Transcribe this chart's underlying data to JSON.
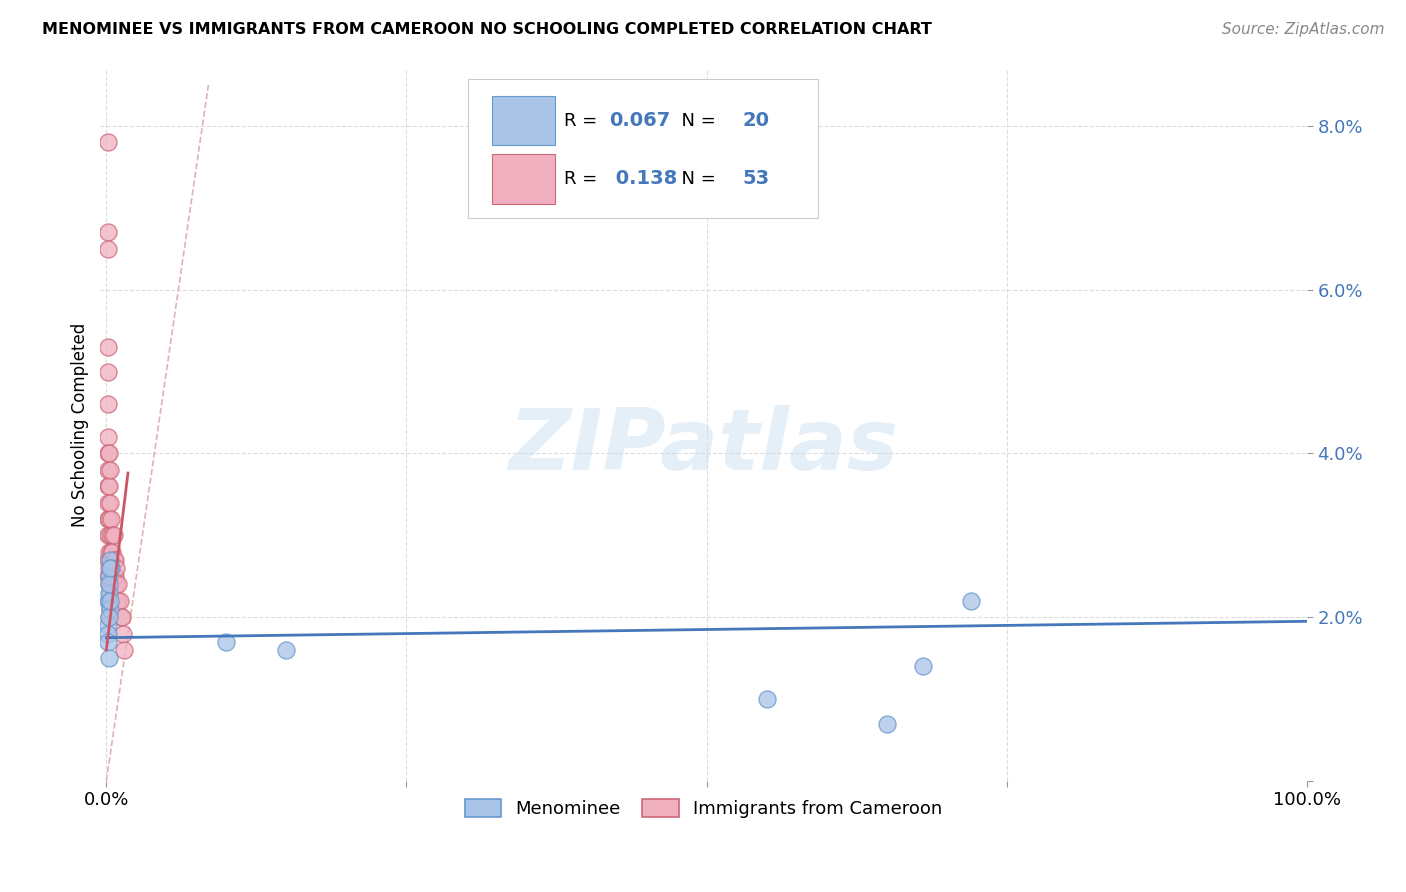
{
  "title": "MENOMINEE VS IMMIGRANTS FROM CAMEROON NO SCHOOLING COMPLETED CORRELATION CHART",
  "source": "Source: ZipAtlas.com",
  "ylabel": "No Schooling Completed",
  "xlim": [
    0,
    1.0
  ],
  "ylim": [
    0.0,
    0.085
  ],
  "yticks": [
    0.0,
    0.02,
    0.04,
    0.06,
    0.08
  ],
  "ytick_labels": [
    "",
    "2.0%",
    "4.0%",
    "6.0%",
    "8.0%"
  ],
  "xticks": [
    0.0,
    0.25,
    0.5,
    0.75,
    1.0
  ],
  "xtick_labels": [
    "0.0%",
    "",
    "",
    "",
    "100.0%"
  ],
  "menominee_r": 0.067,
  "menominee_n": 20,
  "cameroon_r": 0.138,
  "cameroon_n": 53,
  "menominee_color": "#aac4e8",
  "cameroon_color": "#f0b0c0",
  "menominee_edge_color": "#6699cc",
  "cameroon_edge_color": "#cc6677",
  "menominee_line_color": "#4477bb",
  "cameroon_line_color": "#cc5566",
  "diagonal_color": "#ddaaaa",
  "background_color": "#ffffff",
  "grid_color": "#dddddd",
  "watermark_text": "ZIPatlas",
  "legend_text_color": "#4477bb",
  "menominee_x": [
    0.002,
    0.003,
    0.001,
    0.002,
    0.003,
    0.001,
    0.004,
    0.002,
    0.003,
    0.001,
    0.002,
    0.001,
    0.003,
    0.002,
    0.55,
    0.65,
    0.68,
    0.72,
    0.1,
    0.15
  ],
  "menominee_y": [
    0.025,
    0.027,
    0.022,
    0.023,
    0.021,
    0.019,
    0.026,
    0.02,
    0.022,
    0.018,
    0.024,
    0.017,
    0.026,
    0.015,
    0.01,
    0.007,
    0.014,
    0.022,
    0.017,
    0.016
  ],
  "cameroon_x": [
    0.001,
    0.001,
    0.001,
    0.001,
    0.001,
    0.001,
    0.001,
    0.001,
    0.001,
    0.001,
    0.001,
    0.001,
    0.001,
    0.001,
    0.001,
    0.002,
    0.002,
    0.002,
    0.002,
    0.002,
    0.002,
    0.002,
    0.002,
    0.003,
    0.003,
    0.003,
    0.003,
    0.003,
    0.003,
    0.003,
    0.004,
    0.004,
    0.004,
    0.004,
    0.004,
    0.005,
    0.005,
    0.005,
    0.006,
    0.006,
    0.006,
    0.007,
    0.007,
    0.008,
    0.008,
    0.009,
    0.01,
    0.01,
    0.011,
    0.012,
    0.013,
    0.014,
    0.015
  ],
  "cameroon_y": [
    0.078,
    0.067,
    0.065,
    0.053,
    0.05,
    0.046,
    0.042,
    0.04,
    0.038,
    0.036,
    0.034,
    0.032,
    0.03,
    0.027,
    0.025,
    0.04,
    0.036,
    0.032,
    0.028,
    0.026,
    0.024,
    0.022,
    0.02,
    0.038,
    0.034,
    0.03,
    0.027,
    0.025,
    0.023,
    0.021,
    0.032,
    0.028,
    0.026,
    0.024,
    0.022,
    0.03,
    0.028,
    0.025,
    0.03,
    0.027,
    0.025,
    0.027,
    0.025,
    0.026,
    0.024,
    0.022,
    0.024,
    0.022,
    0.022,
    0.02,
    0.02,
    0.018,
    0.016
  ]
}
